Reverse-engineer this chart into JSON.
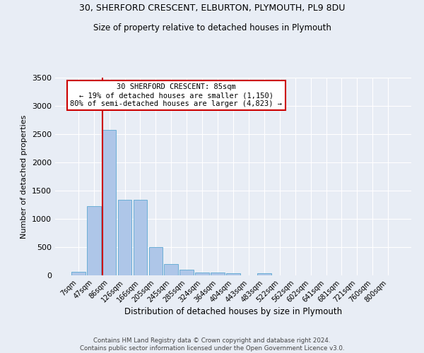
{
  "title1": "30, SHERFORD CRESCENT, ELBURTON, PLYMOUTH, PL9 8DU",
  "title2": "Size of property relative to detached houses in Plymouth",
  "xlabel": "Distribution of detached houses by size in Plymouth",
  "ylabel": "Number of detached properties",
  "footer1": "Contains HM Land Registry data © Crown copyright and database right 2024.",
  "footer2": "Contains public sector information licensed under the Open Government Licence v3.0.",
  "annotation_title": "30 SHERFORD CRESCENT: 85sqm",
  "annotation_line1": "← 19% of detached houses are smaller (1,150)",
  "annotation_line2": "80% of semi-detached houses are larger (4,823) →",
  "bar_labels": [
    "7sqm",
    "47sqm",
    "86sqm",
    "126sqm",
    "166sqm",
    "205sqm",
    "245sqm",
    "285sqm",
    "324sqm",
    "364sqm",
    "404sqm",
    "443sqm",
    "483sqm",
    "522sqm",
    "562sqm",
    "602sqm",
    "641sqm",
    "681sqm",
    "721sqm",
    "760sqm",
    "800sqm"
  ],
  "bar_values": [
    60,
    1220,
    2580,
    1340,
    1340,
    500,
    195,
    100,
    55,
    55,
    35,
    0,
    35,
    0,
    0,
    0,
    0,
    0,
    0,
    0,
    0
  ],
  "bar_color": "#aec6e8",
  "bar_edge_color": "#6baed6",
  "marker_bar_index": 2,
  "marker_color": "#cc0000",
  "annotation_box_color": "#cc0000",
  "bg_color": "#e8edf5",
  "grid_color": "#ffffff",
  "ylim": [
    0,
    3500
  ],
  "yticks": [
    0,
    500,
    1000,
    1500,
    2000,
    2500,
    3000,
    3500
  ]
}
